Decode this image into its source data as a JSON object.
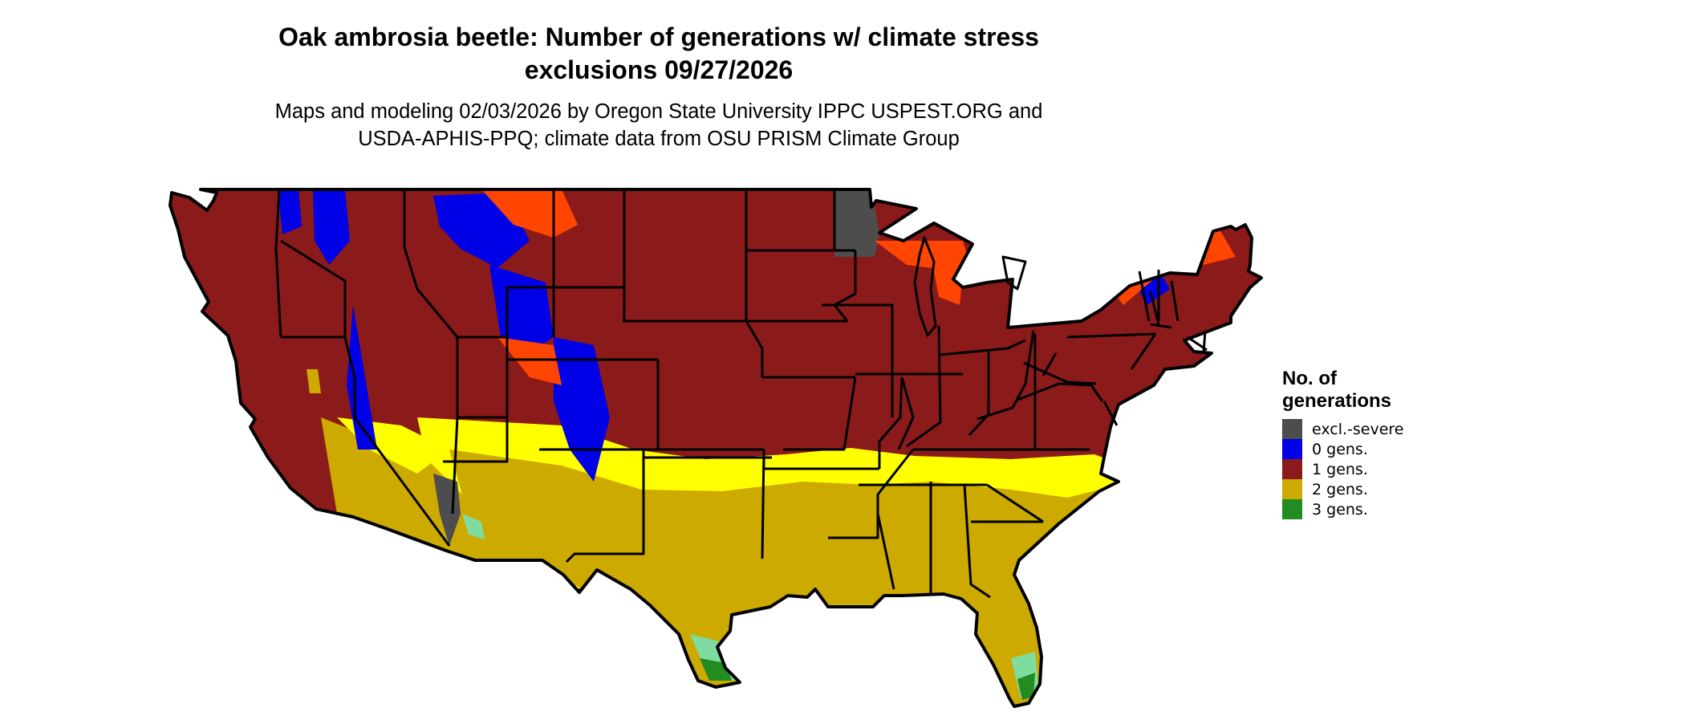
{
  "title": {
    "line1": "Oak ambrosia beetle: Number of generations w/ climate stress",
    "line2": "exclusions 09/27/2026"
  },
  "subtitle": {
    "line1": "Maps and modeling 02/03/2026 by Oregon State University IPPC USPEST.ORG and",
    "line2": "USDA-APHIS-PPQ; climate data from OSU PRISM Climate Group"
  },
  "legend": {
    "title": "No. of generations",
    "items": [
      {
        "label": "excl.-severe",
        "color": "#4d4d4d"
      },
      {
        "label": "0 gens.",
        "color": "#0000e6"
      },
      {
        "label": "1 gens.",
        "color": "#8b1a1a"
      },
      {
        "label": "2 gens.",
        "color": "#ccaa00"
      },
      {
        "label": "3 gens.",
        "color": "#228b22"
      }
    ]
  },
  "map_colors": {
    "excluded": "#4d4d4d",
    "zero": "#0000e6",
    "one": "#8b1a1a",
    "one_margin": "#ff4500",
    "two": "#ccaa00",
    "two_margin": "#ffff00",
    "three": "#228b22",
    "three_margin": "#7fdca0",
    "border": "#000000"
  }
}
